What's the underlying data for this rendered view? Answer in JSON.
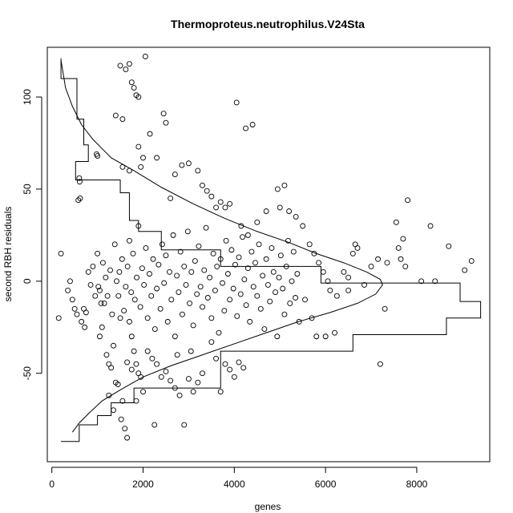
{
  "chart_data": {
    "type": "scatter",
    "title": "Thermoproteus.neutrophilus.V24Sta",
    "xlabel": "genes",
    "ylabel": "second RBH residuals",
    "xlim": [
      -100,
      9600
    ],
    "ylim": [
      -98,
      127
    ],
    "x_ticks": [
      0,
      2000,
      4000,
      6000,
      8000
    ],
    "x_tick_labels": [
      "0",
      "2000",
      "4000",
      "6000",
      "8000"
    ],
    "y_ticks": [
      -50,
      0,
      50,
      100
    ],
    "y_tick_labels": [
      "-50",
      "0",
      "50",
      "100"
    ],
    "grid": false,
    "legend": "none",
    "points": [
      [
        150,
        -20
      ],
      [
        200,
        15
      ],
      [
        350,
        -5
      ],
      [
        400,
        0
      ],
      [
        450,
        -10
      ],
      [
        500,
        -15
      ],
      [
        550,
        -18
      ],
      [
        600,
        56
      ],
      [
        610,
        54
      ],
      [
        620,
        45
      ],
      [
        580,
        44
      ],
      [
        700,
        -15
      ],
      [
        650,
        -22
      ],
      [
        720,
        -25
      ],
      [
        750,
        -17
      ],
      [
        800,
        5
      ],
      [
        850,
        -2
      ],
      [
        900,
        8
      ],
      [
        950,
        -8
      ],
      [
        980,
        69
      ],
      [
        1000,
        68
      ],
      [
        1020,
        -3
      ],
      [
        1050,
        -30
      ],
      [
        1100,
        -25
      ],
      [
        1150,
        -12
      ],
      [
        1200,
        -40
      ],
      [
        1250,
        -45
      ],
      [
        1300,
        -47
      ],
      [
        1350,
        -35
      ],
      [
        1400,
        -55
      ],
      [
        1450,
        -56
      ],
      [
        1500,
        -20
      ],
      [
        1520,
        -75
      ],
      [
        1550,
        -65
      ],
      [
        1600,
        -80
      ],
      [
        1650,
        -85
      ],
      [
        1700,
        -22
      ],
      [
        1750,
        -30
      ],
      [
        1800,
        -38
      ],
      [
        1850,
        -45
      ],
      [
        1900,
        -50
      ],
      [
        1950,
        -52
      ],
      [
        1000,
        15
      ],
      [
        1050,
        -5
      ],
      [
        1080,
        -12
      ],
      [
        1120,
        10
      ],
      [
        1180,
        2
      ],
      [
        1220,
        -8
      ],
      [
        1280,
        6
      ],
      [
        1320,
        -18
      ],
      [
        1380,
        20
      ],
      [
        1420,
        0
      ],
      [
        1460,
        -8
      ],
      [
        1480,
        5
      ],
      [
        1540,
        12
      ],
      [
        1580,
        -16
      ],
      [
        1620,
        -3
      ],
      [
        1660,
        8
      ],
      [
        1700,
        22
      ],
      [
        1740,
        -6
      ],
      [
        1780,
        15
      ],
      [
        1820,
        -10
      ],
      [
        1860,
        2
      ],
      [
        1900,
        30
      ],
      [
        1940,
        -14
      ],
      [
        1980,
        7
      ],
      [
        2020,
        -2
      ],
      [
        2060,
        18
      ],
      [
        2100,
        -20
      ],
      [
        2140,
        4
      ],
      [
        2180,
        -8
      ],
      [
        2220,
        12
      ],
      [
        2260,
        -26
      ],
      [
        2300,
        -4
      ],
      [
        2340,
        9
      ],
      [
        2380,
        -15
      ],
      [
        2420,
        20
      ],
      [
        2460,
        -1
      ],
      [
        2500,
        14
      ],
      [
        2540,
        -22
      ],
      [
        2580,
        5
      ],
      [
        2620,
        -10
      ],
      [
        2660,
        25
      ],
      [
        2700,
        -30
      ],
      [
        2740,
        3
      ],
      [
        2780,
        -6
      ],
      [
        2820,
        16
      ],
      [
        2860,
        -18
      ],
      [
        2900,
        8
      ],
      [
        2940,
        -2
      ],
      [
        2980,
        27
      ],
      [
        3020,
        -12
      ],
      [
        3060,
        5
      ],
      [
        3100,
        -24
      ],
      [
        3140,
        11
      ],
      [
        3180,
        -7
      ],
      [
        3220,
        19
      ],
      [
        3260,
        -3
      ],
      [
        3300,
        -14
      ],
      [
        3340,
        6
      ],
      [
        3380,
        29
      ],
      [
        3420,
        -9
      ],
      [
        3460,
        2
      ],
      [
        3500,
        -20
      ],
      [
        3540,
        15
      ],
      [
        3580,
        -5
      ],
      [
        3620,
        8
      ],
      [
        3660,
        -28
      ],
      [
        3700,
        12
      ],
      [
        3740,
        -1
      ],
      [
        3780,
        -16
      ],
      [
        3820,
        22
      ],
      [
        3860,
        4
      ],
      [
        3900,
        -10
      ],
      [
        3940,
        17
      ],
      [
        3980,
        -4
      ],
      [
        4020,
        9
      ],
      [
        4060,
        -19
      ],
      [
        4100,
        13
      ],
      [
        4140,
        -7
      ],
      [
        4180,
        24
      ],
      [
        4220,
        1
      ],
      [
        4260,
        -13
      ],
      [
        4300,
        7
      ],
      [
        4340,
        -22
      ],
      [
        4380,
        16
      ],
      [
        4420,
        -3
      ],
      [
        4460,
        10
      ],
      [
        4500,
        -8
      ],
      [
        4540,
        20
      ],
      [
        4580,
        -15
      ],
      [
        4620,
        3
      ],
      [
        4660,
        -26
      ],
      [
        4700,
        12
      ],
      [
        4740,
        -2
      ],
      [
        4780,
        -11
      ],
      [
        4820,
        18
      ],
      [
        4860,
        5
      ],
      [
        4900,
        -6
      ],
      [
        4940,
        -30
      ],
      [
        4980,
        2
      ],
      [
        5020,
        14
      ],
      [
        5060,
        -4
      ],
      [
        5100,
        -18
      ],
      [
        5140,
        8
      ],
      [
        5180,
        22
      ],
      [
        5220,
        -12
      ],
      [
        5260,
        0
      ],
      [
        5300,
        16
      ],
      [
        5340,
        -9
      ],
      [
        5380,
        4
      ],
      [
        5420,
        -22
      ],
      [
        1500,
        117
      ],
      [
        1620,
        115
      ],
      [
        1700,
        118
      ],
      [
        1750,
        108
      ],
      [
        1800,
        105
      ],
      [
        1850,
        101
      ],
      [
        1900,
        100
      ],
      [
        2050,
        122
      ],
      [
        1550,
        88
      ],
      [
        1400,
        90
      ],
      [
        2150,
        80
      ],
      [
        2300,
        67
      ],
      [
        2450,
        91
      ],
      [
        2500,
        86
      ],
      [
        2600,
        45
      ],
      [
        1900,
        73
      ],
      [
        2000,
        67
      ],
      [
        1950,
        62
      ],
      [
        1700,
        60
      ],
      [
        1550,
        62
      ],
      [
        2700,
        58
      ],
      [
        2850,
        63
      ],
      [
        3000,
        64
      ],
      [
        3200,
        60
      ],
      [
        3300,
        52
      ],
      [
        3400,
        49
      ],
      [
        3500,
        46
      ],
      [
        3600,
        40
      ],
      [
        3700,
        43
      ],
      [
        3800,
        40
      ],
      [
        4050,
        97
      ],
      [
        4250,
        83
      ],
      [
        4400,
        85
      ],
      [
        3900,
        42
      ],
      [
        4150,
        30
      ],
      [
        4300,
        25
      ],
      [
        4500,
        32
      ],
      [
        4700,
        38
      ],
      [
        4950,
        50
      ],
      [
        5100,
        52
      ],
      [
        5000,
        40
      ],
      [
        5200,
        38
      ],
      [
        5350,
        35
      ],
      [
        5500,
        30
      ],
      [
        5650,
        20
      ],
      [
        5750,
        15
      ],
      [
        5850,
        10
      ],
      [
        5950,
        5
      ],
      [
        6050,
        0
      ],
      [
        6100,
        -5
      ],
      [
        6250,
        -8
      ],
      [
        6400,
        5
      ],
      [
        6500,
        2
      ],
      [
        6600,
        15
      ],
      [
        6650,
        20
      ],
      [
        6700,
        18
      ],
      [
        6850,
        -2
      ],
      [
        7000,
        8
      ],
      [
        7150,
        12
      ],
      [
        7300,
        -15
      ],
      [
        7200,
        -45
      ],
      [
        7350,
        10
      ],
      [
        7550,
        32
      ],
      [
        7600,
        18
      ],
      [
        7650,
        12
      ],
      [
        7700,
        23
      ],
      [
        7750,
        8
      ],
      [
        7800,
        44
      ],
      [
        8100,
        0
      ],
      [
        8300,
        30
      ],
      [
        8400,
        0
      ],
      [
        8700,
        19
      ],
      [
        9050,
        6
      ],
      [
        9200,
        11
      ],
      [
        6500,
        -5
      ],
      [
        6200,
        -28
      ],
      [
        6000,
        -30
      ],
      [
        5800,
        -30
      ],
      [
        5700,
        -20
      ],
      [
        5550,
        -10
      ],
      [
        3800,
        -45
      ],
      [
        3900,
        -48
      ],
      [
        4000,
        -52
      ],
      [
        4100,
        -44
      ],
      [
        4200,
        -47
      ],
      [
        3700,
        -60
      ],
      [
        3600,
        -42
      ],
      [
        3500,
        -33
      ],
      [
        3300,
        -50
      ],
      [
        3200,
        -55
      ],
      [
        3100,
        -60
      ],
      [
        3000,
        -53
      ],
      [
        2900,
        -78
      ],
      [
        2800,
        -62
      ],
      [
        2700,
        -58
      ],
      [
        2600,
        -54
      ],
      [
        2500,
        -49
      ],
      [
        2400,
        -52
      ],
      [
        2300,
        -45
      ],
      [
        2200,
        -42
      ],
      [
        2100,
        -38
      ],
      [
        2000,
        -60
      ],
      [
        1850,
        -65
      ],
      [
        1750,
        -48
      ],
      [
        1650,
        -44
      ],
      [
        1350,
        -70
      ],
      [
        1250,
        -62
      ],
      [
        2250,
        -78
      ],
      [
        2750,
        -40
      ],
      [
        3050,
        -38
      ]
    ],
    "histogram_steps": [
      [
        200,
        121
      ],
      [
        200,
        110
      ],
      [
        550,
        110
      ],
      [
        550,
        102
      ],
      [
        550,
        88
      ],
      [
        700,
        88
      ],
      [
        700,
        74
      ],
      [
        800,
        74
      ],
      [
        800,
        65
      ],
      [
        520,
        65
      ],
      [
        520,
        55
      ],
      [
        700,
        55
      ],
      [
        1500,
        55
      ],
      [
        1500,
        48
      ],
      [
        1700,
        48
      ],
      [
        1700,
        33
      ],
      [
        1900,
        33
      ],
      [
        1900,
        27
      ],
      [
        2400,
        27
      ],
      [
        2400,
        17
      ],
      [
        3700,
        17
      ],
      [
        3700,
        8
      ],
      [
        5900,
        8
      ],
      [
        5900,
        -1
      ],
      [
        8950,
        -1
      ],
      [
        8950,
        -11
      ],
      [
        9400,
        -11
      ],
      [
        9400,
        -20
      ],
      [
        8650,
        -20
      ],
      [
        8650,
        -29
      ],
      [
        6600,
        -29
      ],
      [
        6600,
        -38
      ],
      [
        3700,
        -38
      ],
      [
        3700,
        -47
      ],
      [
        3700,
        -58
      ],
      [
        1800,
        -58
      ],
      [
        1800,
        -66
      ],
      [
        1300,
        -66
      ],
      [
        1300,
        -73
      ],
      [
        1000,
        -73
      ],
      [
        1000,
        -78
      ],
      [
        600,
        -78
      ],
      [
        600,
        -87
      ],
      [
        200,
        -87
      ]
    ],
    "density_curve": [
      [
        200,
        120
      ],
      [
        300,
        105
      ],
      [
        450,
        95
      ],
      [
        650,
        85
      ],
      [
        900,
        77
      ],
      [
        1300,
        67
      ],
      [
        1800,
        60
      ],
      [
        2400,
        51
      ],
      [
        3100,
        42
      ],
      [
        3800,
        34
      ],
      [
        4500,
        27
      ],
      [
        5200,
        21
      ],
      [
        5800,
        15
      ],
      [
        6400,
        10
      ],
      [
        6900,
        5
      ],
      [
        7200,
        1
      ],
      [
        7250,
        -2
      ],
      [
        7100,
        -7
      ],
      [
        6700,
        -12
      ],
      [
        6100,
        -17
      ],
      [
        5400,
        -22
      ],
      [
        4700,
        -28
      ],
      [
        4000,
        -34
      ],
      [
        3300,
        -40
      ],
      [
        2600,
        -46
      ],
      [
        2000,
        -52
      ],
      [
        1500,
        -59
      ],
      [
        1100,
        -65
      ],
      [
        800,
        -72
      ],
      [
        600,
        -77
      ],
      [
        450,
        -82
      ]
    ]
  }
}
